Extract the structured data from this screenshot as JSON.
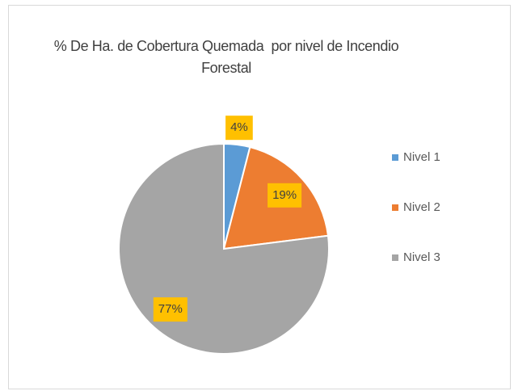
{
  "chart_data": {
    "type": "pie",
    "title": "% De Ha. de Cobertura Quemada  por nivel de Incendio Forestal",
    "categories": [
      "Nivel 1",
      "Nivel 2",
      "Nivel 3"
    ],
    "values": [
      4,
      19,
      77
    ],
    "value_labels": [
      "4%",
      "19%",
      "77%"
    ],
    "colors": [
      "#5b9bd5",
      "#ed7d31",
      "#a5a5a5"
    ],
    "legend": "right"
  }
}
